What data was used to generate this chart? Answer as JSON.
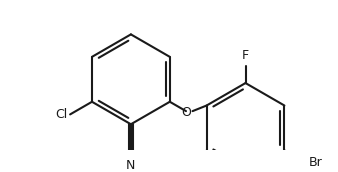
{
  "bg_color": "#ffffff",
  "line_color": "#1a1a1a",
  "line_width": 1.5,
  "font_size": 9,
  "label_Cl": "Cl",
  "label_O": "O",
  "label_N": "N",
  "label_F": "F",
  "label_Br": "Br",
  "figsize": [
    3.38,
    1.72
  ],
  "dpi": 100
}
